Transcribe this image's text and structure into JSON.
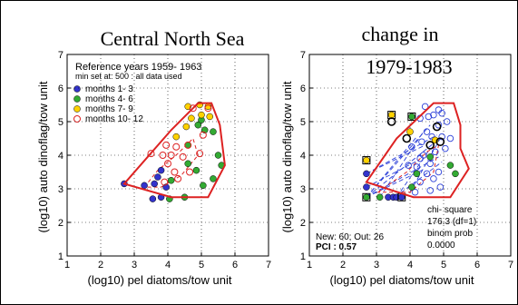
{
  "chart_data": [
    {
      "type": "scatter",
      "title": "Central North Sea",
      "xlabel": "(log10) pel diatoms/tow unit",
      "ylabel": "(log10) auto dinoflag/tow unit",
      "xlim": [
        1,
        7
      ],
      "ylim": [
        1,
        7
      ],
      "xticks": [
        1,
        2,
        3,
        4,
        5,
        6,
        7
      ],
      "yticks": [
        1,
        2,
        3,
        4,
        5,
        6,
        7
      ],
      "grid": true,
      "legend": {
        "title": "Reference years 1959- 1963",
        "subtitle": "min set at: 500 : all data used",
        "placement": "top-left",
        "items": [
          {
            "label": "months 1- 3",
            "color": "#3333cc",
            "marker": "filled"
          },
          {
            "label": "months 4- 6",
            "color": "#33aa33",
            "marker": "filled"
          },
          {
            "label": "months 7- 9",
            "color": "#ffd200",
            "marker": "filled"
          },
          {
            "label": "months 10- 12",
            "color": "#dd2222",
            "marker": "open"
          }
        ]
      },
      "hull": [
        [
          2.7,
          3.15
        ],
        [
          4.1,
          4.75
        ],
        [
          4.9,
          5.55
        ],
        [
          5.3,
          5.55
        ],
        [
          5.55,
          4.9
        ],
        [
          5.7,
          3.7
        ],
        [
          5.2,
          2.75
        ],
        [
          4.1,
          2.75
        ]
      ],
      "inner_contour": [
        [
          3.3,
          3.05
        ],
        [
          3.7,
          3.55
        ],
        [
          4.3,
          4.05
        ],
        [
          4.75,
          4.5
        ],
        [
          4.9,
          4.0
        ],
        [
          4.4,
          3.4
        ],
        [
          3.8,
          3.05
        ]
      ],
      "series": [
        {
          "color": "#3333cc",
          "marker": "filled",
          "points": [
            [
              2.7,
              3.15
            ],
            [
              3.3,
              3.1
            ],
            [
              3.6,
              3.15
            ],
            [
              3.7,
              3.35
            ],
            [
              3.8,
              3.55
            ],
            [
              3.55,
              2.7
            ],
            [
              3.95,
              3.05
            ],
            [
              3.8,
              2.75
            ]
          ]
        },
        {
          "color": "#33aa33",
          "marker": "filled",
          "points": [
            [
              4.1,
              3.25
            ],
            [
              4.6,
              3.75
            ],
            [
              4.6,
              4.3
            ],
            [
              4.9,
              4.9
            ],
            [
              5.1,
              4.75
            ],
            [
              5.35,
              4.7
            ],
            [
              5.5,
              4.0
            ],
            [
              5.6,
              3.7
            ],
            [
              5.35,
              3.3
            ],
            [
              5.05,
              3.1
            ],
            [
              4.5,
              2.75
            ],
            [
              4.05,
              2.7
            ],
            [
              4.85,
              3.55
            ],
            [
              5.0,
              5.05
            ]
          ]
        },
        {
          "color": "#ffd200",
          "marker": "filled",
          "points": [
            [
              4.6,
              5.45
            ],
            [
              4.95,
              5.5
            ],
            [
              5.2,
              5.45
            ],
            [
              4.7,
              5.1
            ],
            [
              4.55,
              4.85
            ],
            [
              5.25,
              5.15
            ],
            [
              5.0,
              5.2
            ],
            [
              4.25,
              4.55
            ]
          ]
        },
        {
          "color": "#dd2222",
          "marker": "open",
          "points": [
            [
              3.5,
              4.05
            ],
            [
              3.85,
              4.0
            ],
            [
              4.0,
              3.75
            ],
            [
              4.2,
              3.5
            ],
            [
              4.45,
              3.95
            ],
            [
              4.6,
              4.3
            ],
            [
              4.95,
              4.05
            ],
            [
              4.75,
              5.4
            ],
            [
              5.2,
              5.4
            ],
            [
              5.05,
              4.6
            ],
            [
              4.3,
              3.3
            ],
            [
              3.9,
              3.2
            ],
            [
              4.65,
              3.5
            ],
            [
              3.95,
              4.3
            ],
            [
              4.25,
              4.25
            ],
            [
              4.1,
              4.0
            ]
          ]
        }
      ]
    },
    {
      "type": "scatter",
      "title": "change in",
      "subtitle": "1979-1983",
      "xlabel": "(log10) pel diatoms/tow unit",
      "ylabel": "(log10) auto dinoflag/tow unit",
      "xlim": [
        1,
        7
      ],
      "ylim": [
        1,
        7
      ],
      "xticks": [
        1,
        2,
        3,
        4,
        5,
        6,
        7
      ],
      "yticks": [
        1,
        2,
        3,
        4,
        5,
        6,
        7
      ],
      "grid": true,
      "hull": [
        [
          2.7,
          3.2
        ],
        [
          3.6,
          4.5
        ],
        [
          4.7,
          5.55
        ],
        [
          5.3,
          5.55
        ],
        [
          5.5,
          4.9
        ],
        [
          5.5,
          4.2
        ],
        [
          5.75,
          3.6
        ],
        [
          5.2,
          2.75
        ],
        [
          4.1,
          2.75
        ]
      ],
      "inner_contour": [
        [
          3.05,
          2.9
        ],
        [
          3.9,
          3.5
        ],
        [
          4.5,
          4.1
        ],
        [
          4.85,
          4.3
        ],
        [
          4.7,
          3.5
        ],
        [
          4.0,
          2.9
        ]
      ],
      "dashed_blue_lines": [
        [
          [
            2.7,
            2.75
          ],
          [
            4.45,
            3.6
          ]
        ],
        [
          [
            2.7,
            2.75
          ],
          [
            4.7,
            4.35
          ]
        ],
        [
          [
            2.7,
            2.75
          ],
          [
            4.85,
            3.95
          ]
        ],
        [
          [
            2.7,
            2.75
          ],
          [
            4.2,
            4.55
          ]
        ],
        [
          [
            2.7,
            2.75
          ],
          [
            4.6,
            4.9
          ]
        ],
        [
          [
            2.7,
            3.45
          ],
          [
            4.45,
            4.3
          ]
        ],
        [
          [
            2.7,
            3.45
          ],
          [
            4.8,
            4.6
          ]
        ],
        [
          [
            3.55,
            2.75
          ],
          [
            4.95,
            3.8
          ]
        ],
        [
          [
            3.1,
            2.75
          ],
          [
            4.4,
            4.7
          ]
        ],
        [
          [
            3.6,
            2.75
          ],
          [
            4.6,
            4.2
          ]
        ],
        [
          [
            4.0,
            2.9
          ],
          [
            4.9,
            4.5
          ]
        ],
        [
          [
            2.7,
            3.05
          ],
          [
            4.25,
            3.85
          ]
        ]
      ],
      "new_points": [
        [
          4.3,
          5.1
        ],
        [
          4.55,
          5.15
        ],
        [
          4.7,
          5.2
        ],
        [
          4.95,
          5.25
        ],
        [
          5.1,
          5.0
        ],
        [
          4.85,
          4.9
        ],
        [
          4.5,
          4.7
        ],
        [
          4.35,
          4.4
        ],
        [
          4.65,
          4.55
        ],
        [
          4.95,
          4.55
        ],
        [
          4.4,
          4.0
        ],
        [
          4.6,
          3.75
        ],
        [
          4.85,
          3.5
        ],
        [
          4.3,
          3.2
        ],
        [
          4.15,
          2.9
        ],
        [
          4.6,
          2.95
        ],
        [
          5.05,
          4.2
        ],
        [
          4.75,
          4.1
        ],
        [
          4.45,
          5.45
        ],
        [
          4.85,
          5.35
        ],
        [
          3.95,
          3.7
        ],
        [
          4.5,
          3.45
        ],
        [
          4.2,
          3.65
        ],
        [
          5.2,
          4.5
        ],
        [
          4.05,
          4.25
        ],
        [
          4.9,
          3.05
        ],
        [
          4.3,
          3.9
        ],
        [
          4.7,
          3.3
        ]
      ],
      "old_points": [
        {
          "x": 2.7,
          "y": 2.75,
          "color": "#33aa33"
        },
        {
          "x": 3.1,
          "y": 2.75,
          "color": "#33aa33"
        },
        {
          "x": 3.35,
          "y": 2.75,
          "color": "#3333cc"
        },
        {
          "x": 3.5,
          "y": 2.75,
          "color": "#3333cc"
        },
        {
          "x": 3.6,
          "y": 2.75,
          "color": "#3333cc"
        },
        {
          "x": 3.75,
          "y": 2.75,
          "color": "#3333cc"
        },
        {
          "x": 2.7,
          "y": 3.45,
          "color": "#3333cc"
        },
        {
          "x": 2.7,
          "y": 3.05,
          "color": "#3333cc"
        },
        {
          "x": 2.7,
          "y": 3.85,
          "color": "#ffd200"
        },
        {
          "x": 3.45,
          "y": 5.2,
          "color": "#ffd200"
        },
        {
          "x": 4.6,
          "y": 3.95,
          "color": "#33aa33"
        },
        {
          "x": 5.2,
          "y": 3.7,
          "color": "#33aa33"
        },
        {
          "x": 5.35,
          "y": 3.45,
          "color": "#33aa33"
        },
        {
          "x": 4.05,
          "y": 5.15,
          "color": "#33aa33"
        },
        {
          "x": 4.2,
          "y": 3.45,
          "color": "#33aa33"
        },
        {
          "x": 4.75,
          "y": 4.45,
          "color": "#ffd200"
        },
        {
          "x": 4.0,
          "y": 4.7,
          "color": "#ffd200"
        },
        {
          "x": 4.05,
          "y": 3.05,
          "color": "#33aa33"
        }
      ],
      "black_markers": [
        [
          3.45,
          5.0
        ],
        [
          4.8,
          4.85
        ],
        [
          4.6,
          4.3
        ],
        [
          4.9,
          4.4
        ],
        [
          3.9,
          4.5
        ]
      ],
      "box_markers": [
        [
          2.7,
          3.85
        ],
        [
          3.45,
          5.2
        ],
        [
          4.05,
          5.15
        ],
        [
          2.7,
          2.75
        ],
        [
          3.75,
          2.75
        ]
      ],
      "stats": {
        "stat_text_1": "chi- square",
        "stat_text_2": "176.3 (df=1)",
        "stat_text_3": "binom prob",
        "stat_text_4": "0.0000",
        "new_out": "New: 60; Out: 26",
        "pci": "PCI : 0.57"
      }
    }
  ]
}
